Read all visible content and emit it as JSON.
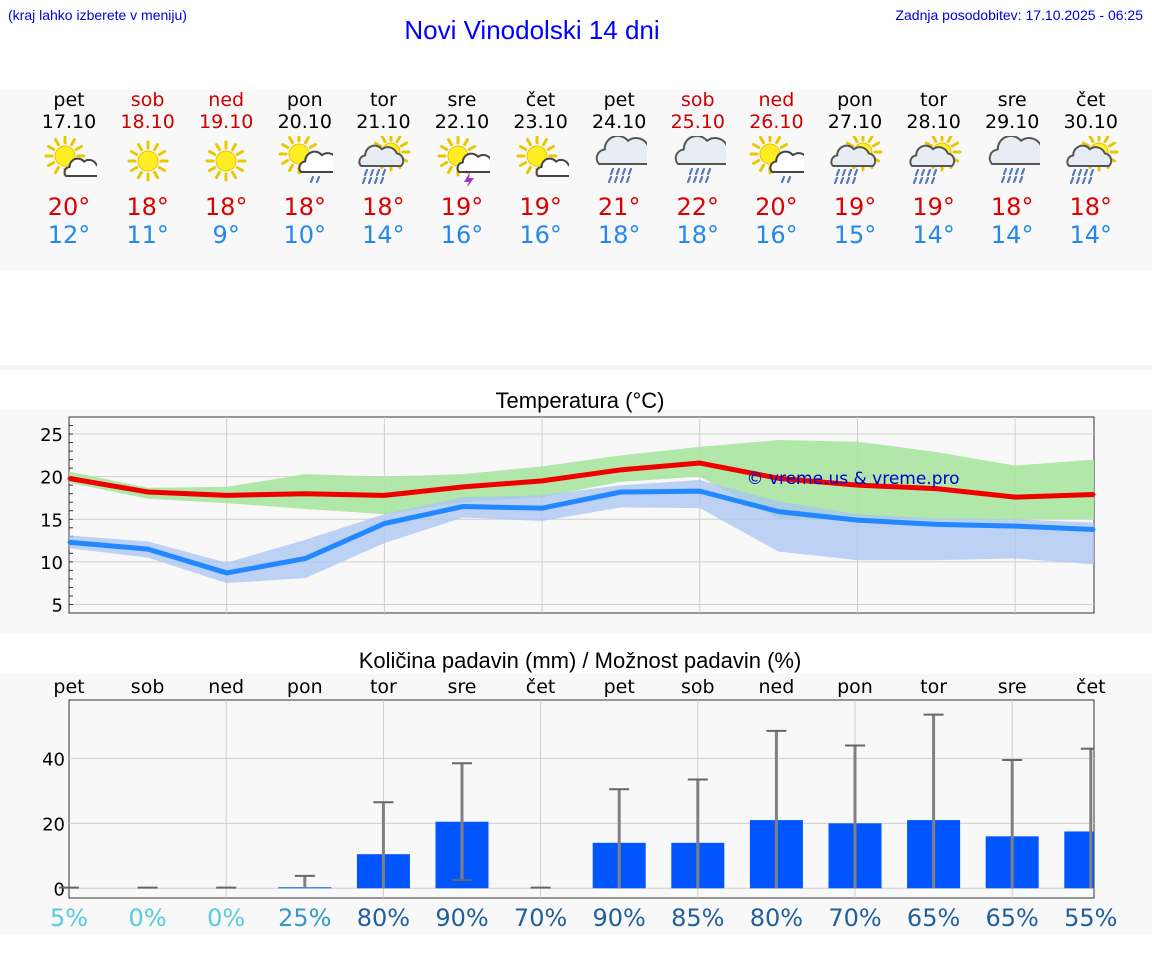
{
  "header": {
    "menu_hint": "(kraj lahko izberete v meniju)",
    "title": "Novi Vinodolski 14 dni",
    "updated": "Zadnja posodobitev: 17.10.2025 - 06:25"
  },
  "colors": {
    "weekend": "#cc0000",
    "tmax": "#dd0000",
    "tmin": "#2288ee",
    "max_line": "#ee0000",
    "min_line": "#2288ff",
    "max_band": "#a8e4a0",
    "min_band": "#aac4f4",
    "bar": "#0055ff",
    "error_bar": "#808080"
  },
  "days": [
    {
      "name": "pet",
      "date": "17.10",
      "weekend": false,
      "icon": "sun-cloud-icon",
      "tmax": "20°",
      "tmin": "12°"
    },
    {
      "name": "sob",
      "date": "18.10",
      "weekend": true,
      "icon": "sun-icon",
      "tmax": "18°",
      "tmin": "11°"
    },
    {
      "name": "ned",
      "date": "19.10",
      "weekend": true,
      "icon": "sun-icon",
      "tmax": "18°",
      "tmin": "9°"
    },
    {
      "name": "pon",
      "date": "20.10",
      "weekend": false,
      "icon": "sun-cloud-rain-icon",
      "tmax": "18°",
      "tmin": "10°"
    },
    {
      "name": "tor",
      "date": "21.10",
      "weekend": false,
      "icon": "cloud-heavy-rain-icon",
      "tmax": "18°",
      "tmin": "14°"
    },
    {
      "name": "sre",
      "date": "22.10",
      "weekend": false,
      "icon": "sun-thunder-icon",
      "tmax": "19°",
      "tmin": "16°"
    },
    {
      "name": "čet",
      "date": "23.10",
      "weekend": false,
      "icon": "sun-cloud-icon",
      "tmax": "19°",
      "tmin": "16°"
    },
    {
      "name": "pet",
      "date": "24.10",
      "weekend": false,
      "icon": "cloud-rain-icon",
      "tmax": "21°",
      "tmin": "18°"
    },
    {
      "name": "sob",
      "date": "25.10",
      "weekend": true,
      "icon": "cloud-rain-icon",
      "tmax": "22°",
      "tmin": "18°"
    },
    {
      "name": "ned",
      "date": "26.10",
      "weekend": true,
      "icon": "sun-cloud-rain-icon",
      "tmax": "20°",
      "tmin": "16°"
    },
    {
      "name": "pon",
      "date": "27.10",
      "weekend": false,
      "icon": "cloud-heavy-rain-icon",
      "tmax": "19°",
      "tmin": "15°"
    },
    {
      "name": "tor",
      "date": "28.10",
      "weekend": false,
      "icon": "cloud-heavy-rain-icon",
      "tmax": "19°",
      "tmin": "14°"
    },
    {
      "name": "sre",
      "date": "29.10",
      "weekend": false,
      "icon": "cloud-rain-icon",
      "tmax": "18°",
      "tmin": "14°"
    },
    {
      "name": "čet",
      "date": "30.10",
      "weekend": false,
      "icon": "cloud-heavy-rain-icon",
      "tmax": "18°",
      "tmin": "14°"
    }
  ],
  "chart_data": [
    {
      "type": "line",
      "title": "Temperatura (°C)",
      "watermark": "© vreme.us & vreme.pro",
      "categories": [
        "17.10",
        "18.10",
        "19.10",
        "20.10",
        "21.10",
        "22.10",
        "23.10",
        "24.10",
        "25.10",
        "26.10",
        "27.10",
        "28.10",
        "29.10",
        "30.10"
      ],
      "ylim": [
        4,
        27
      ],
      "yticks": [
        5,
        10,
        15,
        20,
        25
      ],
      "grid": true,
      "series": [
        {
          "values": [
            19.8,
            18.2,
            17.8,
            18.0,
            17.8,
            18.8,
            19.5,
            20.8,
            21.6,
            19.8,
            19.0,
            18.6,
            17.6,
            17.9
          ],
          "band_low": [
            19.3,
            17.4,
            16.9,
            16.2,
            15.6,
            17.0,
            17.6,
            19.4,
            20.0,
            15.0,
            15.0,
            15.0,
            15.0,
            15.0
          ],
          "band_high": [
            20.6,
            18.7,
            18.8,
            20.3,
            20.0,
            20.3,
            21.2,
            22.5,
            23.5,
            24.3,
            24.1,
            22.9,
            21.3,
            22.0
          ]
        },
        {
          "values": [
            12.3,
            11.5,
            8.7,
            10.4,
            14.5,
            16.5,
            16.3,
            18.2,
            18.3,
            15.9,
            14.9,
            14.4,
            14.2,
            13.8
          ],
          "band_low": [
            11.6,
            10.5,
            7.5,
            8.1,
            12.2,
            15.2,
            14.8,
            16.4,
            16.3,
            11.2,
            10.2,
            10.2,
            10.4,
            9.7
          ],
          "band_high": [
            13.1,
            12.4,
            9.9,
            12.6,
            15.6,
            17.6,
            17.8,
            19.0,
            19.6,
            17.1,
            15.6,
            15.1,
            15.0,
            14.6
          ]
        }
      ]
    },
    {
      "type": "bar",
      "title": "Količina padavin (mm) / Možnost padavin (%)",
      "categories": [
        "pet",
        "sob",
        "ned",
        "pon",
        "tor",
        "sre",
        "čet",
        "pet",
        "sob",
        "ned",
        "pon",
        "tor",
        "sre",
        "čet"
      ],
      "ylim": [
        -3,
        58
      ],
      "yticks": [
        0,
        20,
        40
      ],
      "grid": true,
      "values": [
        0,
        0,
        0,
        0.3,
        10.5,
        20.5,
        0,
        14,
        14,
        21,
        20,
        21,
        16,
        17.5
      ],
      "err_low": [
        0,
        0,
        0,
        0,
        0,
        2.5,
        0,
        0,
        0,
        0,
        0,
        0,
        0,
        0
      ],
      "err_high": [
        0,
        0,
        0,
        3.8,
        26.5,
        38.5,
        0,
        30.5,
        33.5,
        48.5,
        44,
        53.5,
        39.5,
        43
      ],
      "probability": [
        "5%",
        "0%",
        "0%",
        "25%",
        "80%",
        "90%",
        "70%",
        "90%",
        "85%",
        "80%",
        "70%",
        "65%",
        "65%",
        "55%"
      ],
      "probability_colors": [
        "#55ccdd",
        "#55ccdd",
        "#55ccdd",
        "#3399cc",
        "#1f5f9f",
        "#1f5f9f",
        "#1f5f9f",
        "#1f5f9f",
        "#1f5f9f",
        "#1f5f9f",
        "#1f5f9f",
        "#1f5f9f",
        "#1f5f9f",
        "#1f5f9f"
      ]
    }
  ]
}
